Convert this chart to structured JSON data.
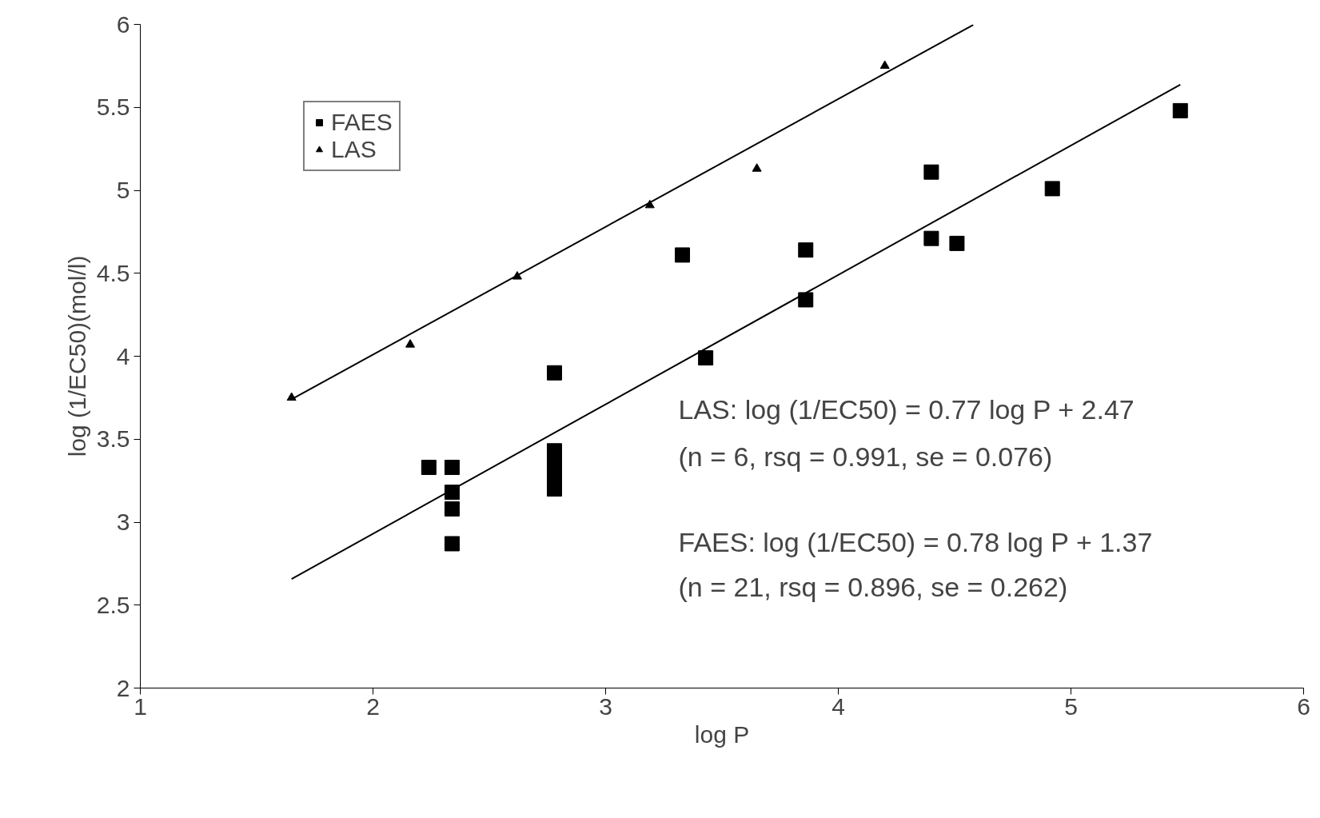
{
  "chart_data": {
    "type": "scatter",
    "xlabel": "log P",
    "ylabel": "log (1/EC50)(mol/l)",
    "xlim": [
      1,
      6
    ],
    "ylim": [
      2,
      6
    ],
    "xticks": [
      1,
      2,
      3,
      4,
      5,
      6
    ],
    "yticks": [
      2,
      2.5,
      3,
      3.5,
      4,
      4.5,
      5,
      5.5,
      6
    ],
    "grid": false,
    "legend": "top left",
    "annotations": [
      "LAS: log (1/EC50) = 0.77 log P + 2.47",
      "(n = 6, rsq = 0.991, se = 0.076)",
      "FAES: log (1/EC50) = 0.78 log P + 1.37",
      "(n = 21, rsq = 0.896, se = 0.262)"
    ],
    "series": [
      {
        "name": "FAES",
        "marker": "square",
        "color": "#000000",
        "x": [
          2.24,
          2.34,
          2.34,
          2.34,
          2.34,
          2.78,
          2.78,
          2.78,
          2.78,
          2.78,
          3.33,
          3.43,
          3.86,
          3.86,
          4.4,
          4.4,
          4.51,
          4.92,
          5.47
        ],
        "values": [
          3.33,
          3.33,
          3.18,
          3.08,
          2.87,
          3.9,
          3.43,
          3.36,
          3.28,
          3.2,
          4.61,
          3.99,
          4.64,
          4.34,
          5.11,
          4.71,
          4.68,
          5.01,
          5.48
        ]
      },
      {
        "name": "LAS",
        "marker": "triangle",
        "color": "#000000",
        "x": [
          1.65,
          2.16,
          2.62,
          3.19,
          3.65,
          4.2
        ],
        "values": [
          3.75,
          4.07,
          4.48,
          4.91,
          5.13,
          5.75
        ]
      },
      {
        "type": "line",
        "color": "#000000",
        "x": [
          1.65,
          4.58
        ],
        "values": [
          3.74,
          5.997
        ]
      },
      {
        "type": "line",
        "color": "#000000",
        "x": [
          1.65,
          5.47
        ],
        "values": [
          2.657,
          5.637
        ]
      }
    ]
  }
}
